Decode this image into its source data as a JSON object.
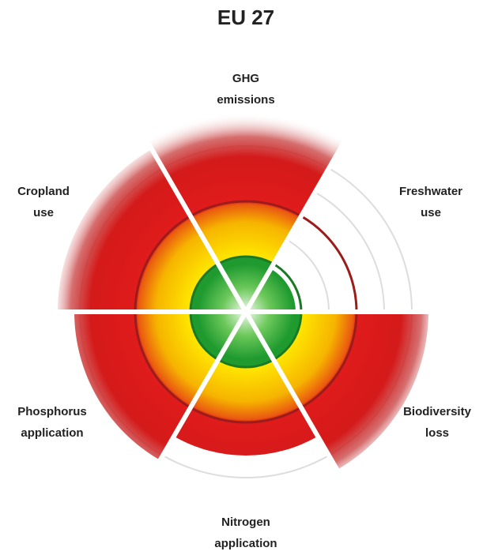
{
  "chart_data": {
    "type": "radial",
    "title": "EU 27",
    "categories": [
      [
        "GHG",
        "emissions"
      ],
      [
        "Freshwater",
        "use"
      ],
      [
        "Biodiversity",
        "loss"
      ],
      [
        "Nitrogen",
        "application"
      ],
      [
        "Phosphorus",
        "application"
      ],
      [
        "Cropland",
        "use"
      ]
    ],
    "values": [
      3.6,
      0.9,
      3.3,
      2.6,
      3.1,
      3.4
    ],
    "rlim": [
      0,
      3.6
    ],
    "rticks": [
      1.5,
      2.5,
      3
    ],
    "safe_boundary": 1,
    "upper_boundary": 2,
    "colors": {
      "safe": "#1f9a2f",
      "caution": "#ffd800",
      "high": "#e01b1b",
      "boundary_safe": "#1a7a24",
      "boundary_high": "#9c1c1c"
    }
  }
}
